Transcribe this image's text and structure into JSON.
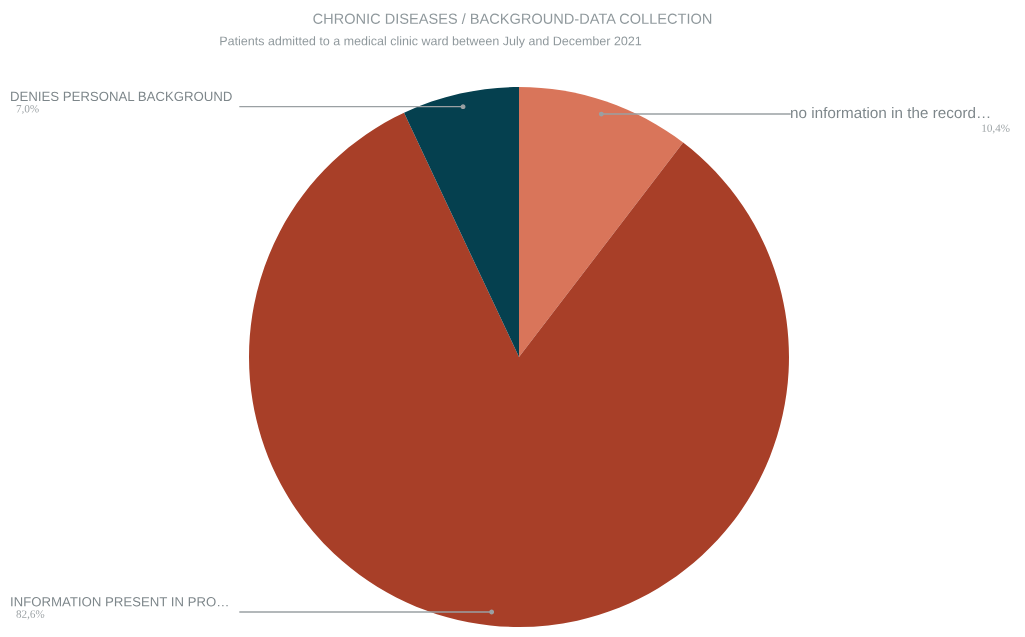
{
  "chart_data": {
    "type": "pie",
    "title": "CHRONIC DISEASES / BACKGROUND-DATA COLLECTION",
    "subtitle": "Patients admitted to a medical clinic ward between July and December 2021",
    "categories": [
      "no information in the record…",
      "INFORMATION PRESENT IN PRO…",
      "DENIES PERSONAL BACKGROUND"
    ],
    "values": [
      10.4,
      82.6,
      7.0
    ],
    "colors": [
      "#d9755a",
      "#a83f28",
      "#05404f"
    ],
    "value_labels": [
      "10,4%",
      "82,6%",
      "7,0%"
    ]
  }
}
